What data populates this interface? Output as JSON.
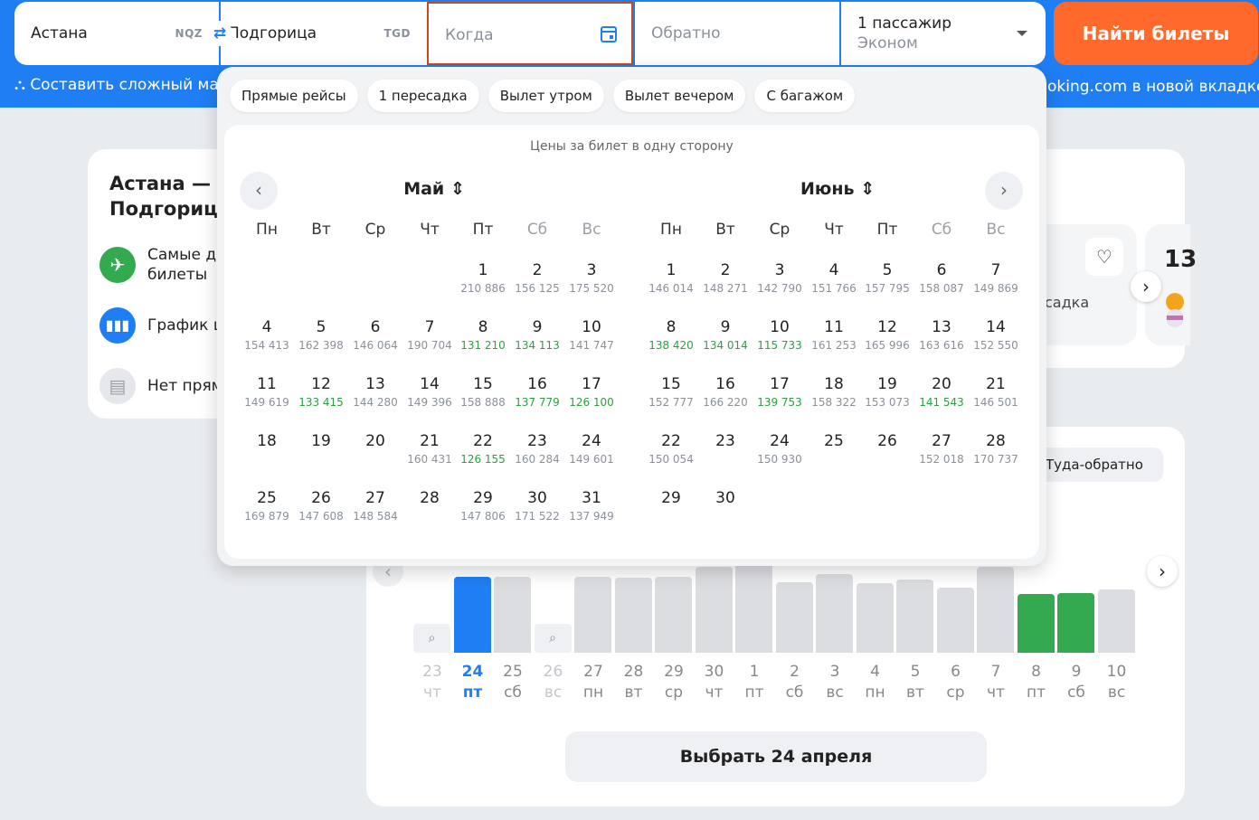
{
  "header": {
    "from": {
      "city": "Астана",
      "code": "NQZ"
    },
    "to": {
      "city": "Подгорица",
      "code": "TGD"
    },
    "when_placeholder": "Когда",
    "back_placeholder": "Обратно",
    "passengers": "1 пассажир",
    "cabin": "Эконом",
    "find_button": "Найти билеты",
    "route_link": "Составить сложный ма",
    "booking_link": "oking.com в новой вкладке",
    "colors": {
      "brand": "#1f7ef4",
      "cta": "#ff6a2c"
    }
  },
  "left_card": {
    "title": "Астана — Подгорица",
    "items": [
      {
        "icon": "plane-icon",
        "label": "Самые де билеты"
      },
      {
        "icon": "chart-icon",
        "label": "График ц"
      },
      {
        "icon": "calendar-icon",
        "label": "Нет прям"
      }
    ]
  },
  "right_card": {
    "transfer": "садка",
    "number": "13"
  },
  "calendar": {
    "chips": [
      "Прямые рейсы",
      "1 пересадка",
      "Вылет утром",
      "Вылет вечером",
      "С багажом"
    ],
    "hint": "Цены за билет в одну сторону",
    "weekdays": [
      "Пн",
      "Вт",
      "Ср",
      "Чт",
      "Пт",
      "Сб",
      "Вс"
    ],
    "months": [
      {
        "name": "Май",
        "start_col": 4,
        "days": [
          [
            "1",
            "210 886",
            0
          ],
          [
            "2",
            "156 125",
            0
          ],
          [
            "3",
            "175 520",
            0
          ],
          [
            "4",
            "154 413",
            0
          ],
          [
            "5",
            "162 398",
            0
          ],
          [
            "6",
            "146 064",
            0
          ],
          [
            "7",
            "190 704",
            0
          ],
          [
            "8",
            "131 210",
            1
          ],
          [
            "9",
            "134 113",
            1
          ],
          [
            "10",
            "141 747",
            0
          ],
          [
            "11",
            "149 619",
            0
          ],
          [
            "12",
            "133 415",
            1
          ],
          [
            "13",
            "144 280",
            0
          ],
          [
            "14",
            "149 396",
            0
          ],
          [
            "15",
            "158 888",
            0
          ],
          [
            "16",
            "137 779",
            1
          ],
          [
            "17",
            "126 100",
            1
          ],
          [
            "18",
            "",
            0
          ],
          [
            "19",
            "",
            0
          ],
          [
            "20",
            "",
            0
          ],
          [
            "21",
            "160 431",
            0
          ],
          [
            "22",
            "126 155",
            1
          ],
          [
            "23",
            "160 284",
            0
          ],
          [
            "24",
            "149 601",
            0
          ],
          [
            "25",
            "169 879",
            0
          ],
          [
            "26",
            "147 608",
            0
          ],
          [
            "27",
            "148 584",
            0
          ],
          [
            "28",
            "",
            0
          ],
          [
            "29",
            "147 806",
            0
          ],
          [
            "30",
            "171 522",
            0
          ],
          [
            "31",
            "137 949",
            0
          ]
        ]
      },
      {
        "name": "Июнь",
        "start_col": 0,
        "days": [
          [
            "1",
            "146 014",
            0
          ],
          [
            "2",
            "148 271",
            0
          ],
          [
            "3",
            "142 790",
            0
          ],
          [
            "4",
            "151 766",
            0
          ],
          [
            "5",
            "157 795",
            0
          ],
          [
            "6",
            "158 087",
            0
          ],
          [
            "7",
            "149 869",
            0
          ],
          [
            "8",
            "138 420",
            1
          ],
          [
            "9",
            "134 014",
            1
          ],
          [
            "10",
            "115 733",
            1
          ],
          [
            "11",
            "161 253",
            0
          ],
          [
            "12",
            "165 996",
            0
          ],
          [
            "13",
            "163 616",
            0
          ],
          [
            "14",
            "152 550",
            0
          ],
          [
            "15",
            "152 777",
            0
          ],
          [
            "16",
            "166 220",
            0
          ],
          [
            "17",
            "139 753",
            1
          ],
          [
            "18",
            "158 322",
            0
          ],
          [
            "19",
            "153 073",
            0
          ],
          [
            "20",
            "141 543",
            1
          ],
          [
            "21",
            "146 501",
            0
          ],
          [
            "22",
            "150 054",
            0
          ],
          [
            "23",
            "",
            0
          ],
          [
            "24",
            "150 930",
            0
          ],
          [
            "25",
            "",
            0
          ],
          [
            "26",
            "",
            0
          ],
          [
            "27",
            "152 018",
            0
          ],
          [
            "28",
            "170 737",
            0
          ],
          [
            "29",
            "",
            0
          ],
          [
            "30",
            "",
            0
          ]
        ]
      }
    ]
  },
  "price_chart": {
    "roundtrip_label": "Туда-обратно",
    "select_button": "Выбрать 24 апреля",
    "days": [
      {
        "d": "23",
        "w": "чт",
        "state": "search",
        "level": 0
      },
      {
        "d": "24",
        "w": "пт",
        "state": "sel",
        "level": 0.82
      },
      {
        "d": "25",
        "w": "сб",
        "state": "normal",
        "level": 0.82
      },
      {
        "d": "26",
        "w": "вс",
        "state": "search",
        "level": 0
      },
      {
        "d": "27",
        "w": "пн",
        "state": "normal",
        "level": 0.82
      },
      {
        "d": "28",
        "w": "вт",
        "state": "normal",
        "level": 0.81
      },
      {
        "d": "29",
        "w": "ср",
        "state": "normal",
        "level": 0.82
      },
      {
        "d": "30",
        "w": "чт",
        "state": "normal",
        "level": 0.93
      },
      {
        "d": "1",
        "w": "пт",
        "state": "normal",
        "level": 0.97
      },
      {
        "d": "2",
        "w": "сб",
        "state": "normal",
        "level": 0.76
      },
      {
        "d": "3",
        "w": "вс",
        "state": "normal",
        "level": 0.85
      },
      {
        "d": "4",
        "w": "пн",
        "state": "normal",
        "level": 0.75
      },
      {
        "d": "5",
        "w": "вт",
        "state": "normal",
        "level": 0.79
      },
      {
        "d": "6",
        "w": "ср",
        "state": "normal",
        "level": 0.71
      },
      {
        "d": "7",
        "w": "чт",
        "state": "normal",
        "level": 0.93
      },
      {
        "d": "8",
        "w": "пт",
        "state": "cheap",
        "level": 0.64
      },
      {
        "d": "9",
        "w": "сб",
        "state": "cheap",
        "level": 0.65
      },
      {
        "d": "10",
        "w": "вс",
        "state": "normal",
        "level": 0.69
      }
    ]
  }
}
